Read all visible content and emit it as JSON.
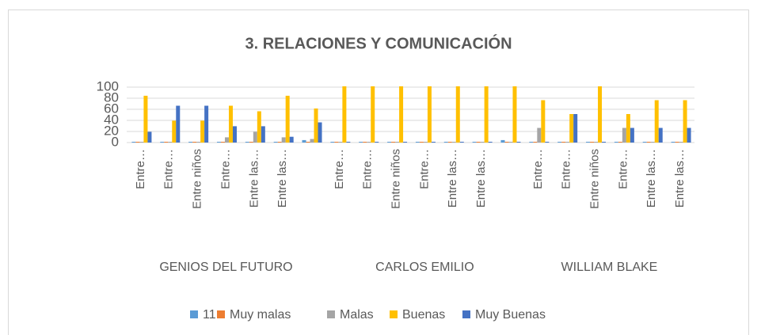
{
  "chart_data": {
    "type": "bar",
    "title": "3. RELACIONES Y COMUNICACIÓN",
    "groups": [
      {
        "name": "GENIOS DEL FUTURO",
        "categories": [
          "Entre…",
          "Entre…",
          "Entre niños",
          "Entre…",
          "Entre las…",
          "Entre las…",
          null
        ]
      },
      {
        "name": "CARLOS EMILIO",
        "categories": [
          "Entre…",
          "Entre…",
          "Entre niños",
          "Entre…",
          "Entre las…",
          "Entre las…",
          null
        ]
      },
      {
        "name": "WILLIAM BLAKE",
        "categories": [
          "Entre…",
          "Entre…",
          "Entre niños",
          "Entre…",
          "Entre las…",
          "Entre las…"
        ]
      }
    ],
    "series": [
      {
        "name": "11",
        "color": "#5b9bd5",
        "values": [
          0,
          0,
          0,
          0,
          0,
          0,
          3,
          0,
          0,
          0,
          0,
          0,
          0,
          3,
          0,
          0,
          0,
          0,
          0,
          0
        ]
      },
      {
        "name": "Muy malas",
        "color": "#ed7d31",
        "values": [
          0,
          0,
          0,
          0,
          0,
          0,
          0,
          0,
          0,
          0,
          0,
          0,
          0,
          0,
          0,
          0,
          0,
          0,
          0,
          0
        ]
      },
      {
        "name": "Malas",
        "color": "#a5a5a5",
        "values": [
          0,
          0,
          0,
          8,
          18,
          8,
          5,
          0,
          0,
          0,
          0,
          0,
          0,
          0,
          25,
          0,
          0,
          25,
          0,
          0
        ]
      },
      {
        "name": "Buenas",
        "color": "#ffc000",
        "values": [
          83,
          38,
          38,
          65,
          55,
          83,
          60,
          100,
          100,
          100,
          100,
          100,
          100,
          100,
          75,
          50,
          100,
          50,
          75,
          75
        ]
      },
      {
        "name": "Muy Buenas",
        "color": "#4472c4",
        "values": [
          18,
          65,
          65,
          28,
          28,
          9,
          35,
          0,
          0,
          0,
          0,
          0,
          0,
          0,
          0,
          50,
          0,
          25,
          25,
          25
        ]
      }
    ],
    "ylim": [
      0,
      100
    ],
    "yticks": [
      0,
      20,
      40,
      60,
      80,
      100
    ],
    "grid": true,
    "legend": "bottom"
  }
}
